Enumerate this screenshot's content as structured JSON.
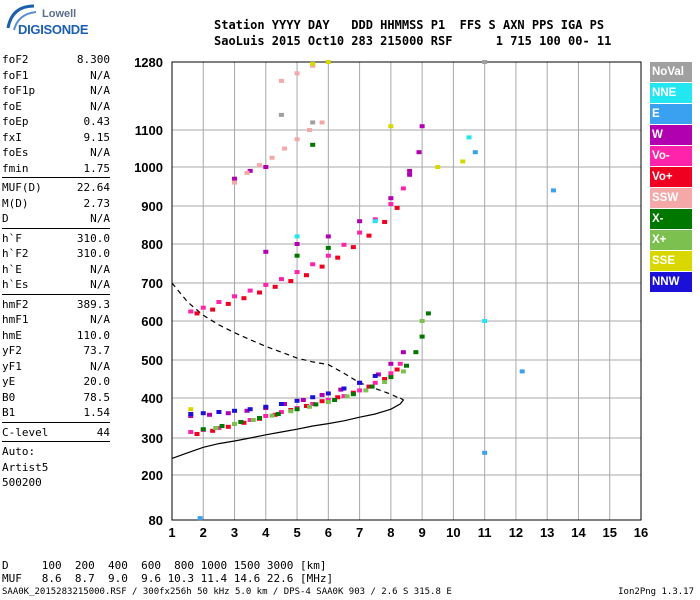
{
  "logo": {
    "line1": "Lowell",
    "line2": "DIGISONDE"
  },
  "header": {
    "line1": "Station YYYY DAY   DDD HHMMSS P1  FFS S AXN PPS IGA PS",
    "line2": "SaoLuis 2015 Oct10 283 215000 RSF      1 715 100 00- 11"
  },
  "params": {
    "g1": [
      {
        "name": "foF2",
        "value": "8.300"
      },
      {
        "name": "foF1",
        "value": "N/A"
      },
      {
        "name": "foF1p",
        "value": "N/A"
      },
      {
        "name": "foE",
        "value": "N/A"
      },
      {
        "name": "foEp",
        "value": "0.43"
      },
      {
        "name": "fxI",
        "value": "9.15"
      },
      {
        "name": "foEs",
        "value": "N/A"
      },
      {
        "name": "fmin",
        "value": "1.75"
      }
    ],
    "g2": [
      {
        "name": "MUF(D)",
        "value": "22.64"
      },
      {
        "name": "M(D)",
        "value": "2.73"
      },
      {
        "name": "D",
        "value": "N/A"
      }
    ],
    "g3": [
      {
        "name": "h`F",
        "value": "310.0"
      },
      {
        "name": "h`F2",
        "value": "310.0"
      },
      {
        "name": "h`E",
        "value": "N/A"
      },
      {
        "name": "h`Es",
        "value": "N/A"
      }
    ],
    "g4": [
      {
        "name": "hmF2",
        "value": "389.3"
      },
      {
        "name": "hmF1",
        "value": "N/A"
      },
      {
        "name": "hmE",
        "value": "110.0"
      },
      {
        "name": "yF2",
        "value": "73.7"
      },
      {
        "name": "yF1",
        "value": "N/A"
      },
      {
        "name": "yE",
        "value": "20.0"
      },
      {
        "name": "B0",
        "value": "78.5"
      },
      {
        "name": "B1",
        "value": "1.54"
      }
    ],
    "g5": [
      {
        "name": "C-level",
        "value": "44"
      }
    ],
    "g6": [
      {
        "name": "Auto:",
        "value": ""
      },
      {
        "name": "Artist5",
        "value": ""
      },
      {
        "name": "500200",
        "value": ""
      }
    ]
  },
  "legend": [
    {
      "label": "NoVal",
      "color": "#a0a0a0"
    },
    {
      "label": "NNE",
      "color": "#22e6f0"
    },
    {
      "label": "E",
      "color": "#3aa0f0"
    },
    {
      "label": "W",
      "color": "#b000b0"
    },
    {
      "label": "Vo-",
      "color": "#ff22aa"
    },
    {
      "label": "Vo+",
      "color": "#f00020"
    },
    {
      "label": "SSW",
      "color": "#f4a8a8"
    },
    {
      "label": "X-",
      "color": "#007800"
    },
    {
      "label": "X+",
      "color": "#7cc050"
    },
    {
      "label": "SSE",
      "color": "#d8d800"
    },
    {
      "label": "NNW",
      "color": "#1a10d8"
    }
  ],
  "footer": {
    "d_row": "D     100  200  400  600  800 1000 1500 3000 [km]",
    "muf_row": "MUF   8.6  8.7  9.0  9.6 10.3 11.4 14.6 22.6 [MHz]",
    "info": "SAA0K_2015283215000.RSF / 300fx256h 50 kHz 5.0 km / DPS-4 SAA0K 903 / 2.6 S 315.8 E",
    "version": "Ion2Png 1.3.17"
  },
  "chart_data": {
    "type": "scatter",
    "xlim": [
      1,
      16
    ],
    "x_ticks": [
      "1",
      "2",
      "3",
      "4",
      "5",
      "6",
      "7",
      "8",
      "9",
      "10",
      "11",
      "12",
      "13",
      "14",
      "15",
      "16"
    ],
    "y_ticks": [
      "80",
      "200",
      "300",
      "400",
      "500",
      "600",
      "700",
      "800",
      "900",
      "1000",
      "1100",
      "1280"
    ],
    "grid": true,
    "series": [
      {
        "name": "Vo-",
        "color": "#ff22aa",
        "points": [
          [
            1.6,
            315
          ],
          [
            2,
            320
          ],
          [
            2.5,
            325
          ],
          [
            3,
            335
          ],
          [
            3.5,
            345
          ],
          [
            4,
            355
          ],
          [
            4.5,
            365
          ],
          [
            5,
            375
          ],
          [
            5.5,
            385
          ],
          [
            6,
            395
          ],
          [
            6.5,
            405
          ],
          [
            7,
            420
          ],
          [
            7.5,
            440
          ],
          [
            8,
            465
          ],
          [
            8.3,
            490
          ],
          [
            1.6,
            625
          ],
          [
            2,
            635
          ],
          [
            2.5,
            650
          ],
          [
            3,
            665
          ],
          [
            3.5,
            680
          ],
          [
            4,
            695
          ],
          [
            4.5,
            710
          ],
          [
            5,
            728
          ],
          [
            5.5,
            748
          ],
          [
            6,
            770
          ],
          [
            6.5,
            798
          ],
          [
            7,
            830
          ],
          [
            7.5,
            865
          ],
          [
            8,
            905
          ],
          [
            8.4,
            945
          ]
        ]
      },
      {
        "name": "Vo+",
        "color": "#f00020",
        "points": [
          [
            1.8,
            310
          ],
          [
            2.3,
            318
          ],
          [
            2.8,
            328
          ],
          [
            3.3,
            338
          ],
          [
            3.8,
            348
          ],
          [
            4.3,
            358
          ],
          [
            4.8,
            370
          ],
          [
            5.3,
            380
          ],
          [
            5.8,
            392
          ],
          [
            6.3,
            402
          ],
          [
            6.8,
            414
          ],
          [
            7.3,
            430
          ],
          [
            7.8,
            450
          ],
          [
            8.2,
            475
          ],
          [
            1.8,
            620
          ],
          [
            2.3,
            630
          ],
          [
            2.8,
            645
          ],
          [
            3.3,
            660
          ],
          [
            3.8,
            675
          ],
          [
            4.3,
            690
          ],
          [
            4.8,
            705
          ],
          [
            5.3,
            720
          ],
          [
            5.8,
            742
          ],
          [
            6.3,
            765
          ],
          [
            6.8,
            792
          ],
          [
            7.3,
            822
          ],
          [
            7.8,
            858
          ],
          [
            8.2,
            895
          ]
        ]
      },
      {
        "name": "W",
        "color": "#b000b0",
        "points": [
          [
            1.6,
            355
          ],
          [
            2.2,
            358
          ],
          [
            2.8,
            362
          ],
          [
            3.4,
            368
          ],
          [
            4,
            375
          ],
          [
            4.6,
            385
          ],
          [
            5.2,
            395
          ],
          [
            5.8,
            408
          ],
          [
            6.4,
            422
          ],
          [
            7,
            440
          ],
          [
            7.6,
            462
          ],
          [
            8,
            490
          ],
          [
            8.4,
            520
          ],
          [
            3,
            970
          ],
          [
            3.5,
            990
          ],
          [
            4,
            1000
          ],
          [
            8.6,
            980
          ],
          [
            8.9,
            1040
          ],
          [
            9,
            1110
          ],
          [
            4,
            780
          ],
          [
            5,
            800
          ],
          [
            6,
            820
          ],
          [
            7,
            860
          ],
          [
            8,
            920
          ],
          [
            8.6,
            990
          ]
        ]
      },
      {
        "name": "NNW",
        "color": "#1a10d8",
        "points": [
          [
            1.6,
            360
          ],
          [
            2,
            362
          ],
          [
            2.5,
            365
          ],
          [
            3,
            368
          ],
          [
            3.5,
            372
          ],
          [
            4,
            378
          ],
          [
            4.5,
            385
          ],
          [
            5,
            393
          ],
          [
            5.5,
            402
          ],
          [
            6,
            412
          ],
          [
            6.5,
            425
          ],
          [
            7,
            440
          ],
          [
            7.5,
            458
          ]
        ]
      },
      {
        "name": "X-",
        "color": "#007800",
        "points": [
          [
            2,
            322
          ],
          [
            2.6,
            330
          ],
          [
            3.2,
            340
          ],
          [
            3.8,
            350
          ],
          [
            4.4,
            360
          ],
          [
            5,
            372
          ],
          [
            5.6,
            384
          ],
          [
            6.2,
            395
          ],
          [
            6.8,
            410
          ],
          [
            7.4,
            430
          ],
          [
            8,
            455
          ],
          [
            8.5,
            485
          ],
          [
            8.8,
            520
          ],
          [
            9,
            560
          ],
          [
            9.2,
            620
          ],
          [
            5,
            770
          ],
          [
            6,
            790
          ],
          [
            5.5,
            1060
          ]
        ]
      },
      {
        "name": "X+",
        "color": "#7cc050",
        "points": [
          [
            2.4,
            325
          ],
          [
            3,
            335
          ],
          [
            3.6,
            345
          ],
          [
            4.2,
            356
          ],
          [
            4.8,
            367
          ],
          [
            5.4,
            378
          ],
          [
            6,
            390
          ],
          [
            6.6,
            404
          ],
          [
            7.2,
            420
          ],
          [
            7.8,
            442
          ],
          [
            8.4,
            470
          ],
          [
            9,
            600
          ]
        ]
      },
      {
        "name": "SSW",
        "color": "#f4a8a8",
        "points": [
          [
            3,
            960
          ],
          [
            3.4,
            985
          ],
          [
            3.8,
            1005
          ],
          [
            4.2,
            1025
          ],
          [
            4.6,
            1050
          ],
          [
            5,
            1075
          ],
          [
            5.4,
            1100
          ],
          [
            5.8,
            1120
          ],
          [
            4.5,
            1230
          ],
          [
            5,
            1250
          ],
          [
            5.5,
            1270
          ]
        ]
      },
      {
        "name": "SSE",
        "color": "#d8d800",
        "points": [
          [
            1.6,
            372
          ],
          [
            9.5,
            1000
          ],
          [
            10.3,
            1015
          ],
          [
            8,
            1110
          ],
          [
            5.5,
            1275
          ],
          [
            6,
            1280
          ]
        ]
      },
      {
        "name": "NNE",
        "color": "#22e6f0",
        "points": [
          [
            5,
            820
          ],
          [
            7.5,
            860
          ],
          [
            11,
            600
          ],
          [
            10.5,
            1080
          ]
        ]
      },
      {
        "name": "E",
        "color": "#3aa0f0",
        "points": [
          [
            10.7,
            1040
          ],
          [
            12.2,
            470
          ],
          [
            13.2,
            940
          ],
          [
            11,
            260
          ],
          [
            1.9,
            85
          ]
        ]
      },
      {
        "name": "NoVal",
        "color": "#a0a0a0",
        "points": [
          [
            11,
            1280
          ],
          [
            4.5,
            1140
          ],
          [
            5.5,
            1120
          ]
        ]
      }
    ],
    "profile": {
      "style": "solid",
      "points": [
        [
          1,
          245
        ],
        [
          1.5,
          260
        ],
        [
          2,
          275
        ],
        [
          2.5,
          285
        ],
        [
          3,
          292
        ],
        [
          3.5,
          300
        ],
        [
          4,
          308
        ],
        [
          4.5,
          315
        ],
        [
          5,
          322
        ],
        [
          5.5,
          330
        ],
        [
          6,
          336
        ],
        [
          6.5,
          343
        ],
        [
          7,
          352
        ],
        [
          7.5,
          360
        ],
        [
          8,
          372
        ],
        [
          8.3,
          385
        ],
        [
          8.4,
          395
        ],
        [
          8.3,
          400
        ]
      ]
    },
    "dashed": {
      "style": "dashed",
      "points": [
        [
          1,
          700
        ],
        [
          1.5,
          650
        ],
        [
          2,
          615
        ],
        [
          2.5,
          590
        ],
        [
          3,
          570
        ],
        [
          3.5,
          552
        ],
        [
          4,
          535
        ],
        [
          4.5,
          520
        ],
        [
          5,
          505
        ],
        [
          5.5,
          495
        ],
        [
          6,
          488
        ],
        [
          6.5,
          465
        ],
        [
          7,
          440
        ],
        [
          7.5,
          425
        ],
        [
          8,
          410
        ],
        [
          8.3,
          398
        ]
      ]
    }
  }
}
